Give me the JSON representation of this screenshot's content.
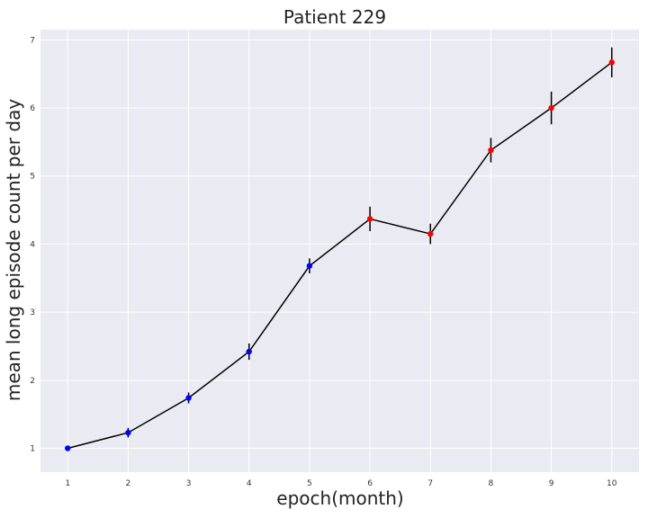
{
  "chart_data": {
    "type": "line",
    "title": "Patient 229",
    "xlabel": "epoch(month)",
    "ylabel": "mean long episode count per day",
    "xlim": [
      0.55,
      10.45
    ],
    "ylim": [
      0.65,
      7.15
    ],
    "grid": true,
    "legend": "none",
    "x_ticks": [
      1,
      2,
      3,
      4,
      5,
      6,
      7,
      8,
      9,
      10
    ],
    "y_ticks": [
      1,
      2,
      3,
      4,
      5,
      6,
      7
    ],
    "series": [
      {
        "x": [
          1,
          2,
          3,
          4,
          5,
          6,
          7,
          8,
          9,
          10
        ],
        "y": [
          1.0,
          1.23,
          1.74,
          2.42,
          3.68,
          4.37,
          4.15,
          5.38,
          6.0,
          6.67
        ],
        "error": [
          0.04,
          0.07,
          0.08,
          0.12,
          0.11,
          0.18,
          0.15,
          0.18,
          0.24,
          0.22
        ],
        "point_colors": [
          "#0000ff",
          "#0000ff",
          "#0000ff",
          "#0000ff",
          "#0000ff",
          "#ff0000",
          "#ff0000",
          "#ff0000",
          "#ff0000",
          "#ff0000"
        ],
        "line_color": "#000000"
      }
    ],
    "colors": {
      "background": "#eaeaf2",
      "grid": "#ffffff",
      "line": "#000000",
      "error_bar": "#000000",
      "first_phase": "#0000ff",
      "second_phase": "#ff0000"
    }
  }
}
